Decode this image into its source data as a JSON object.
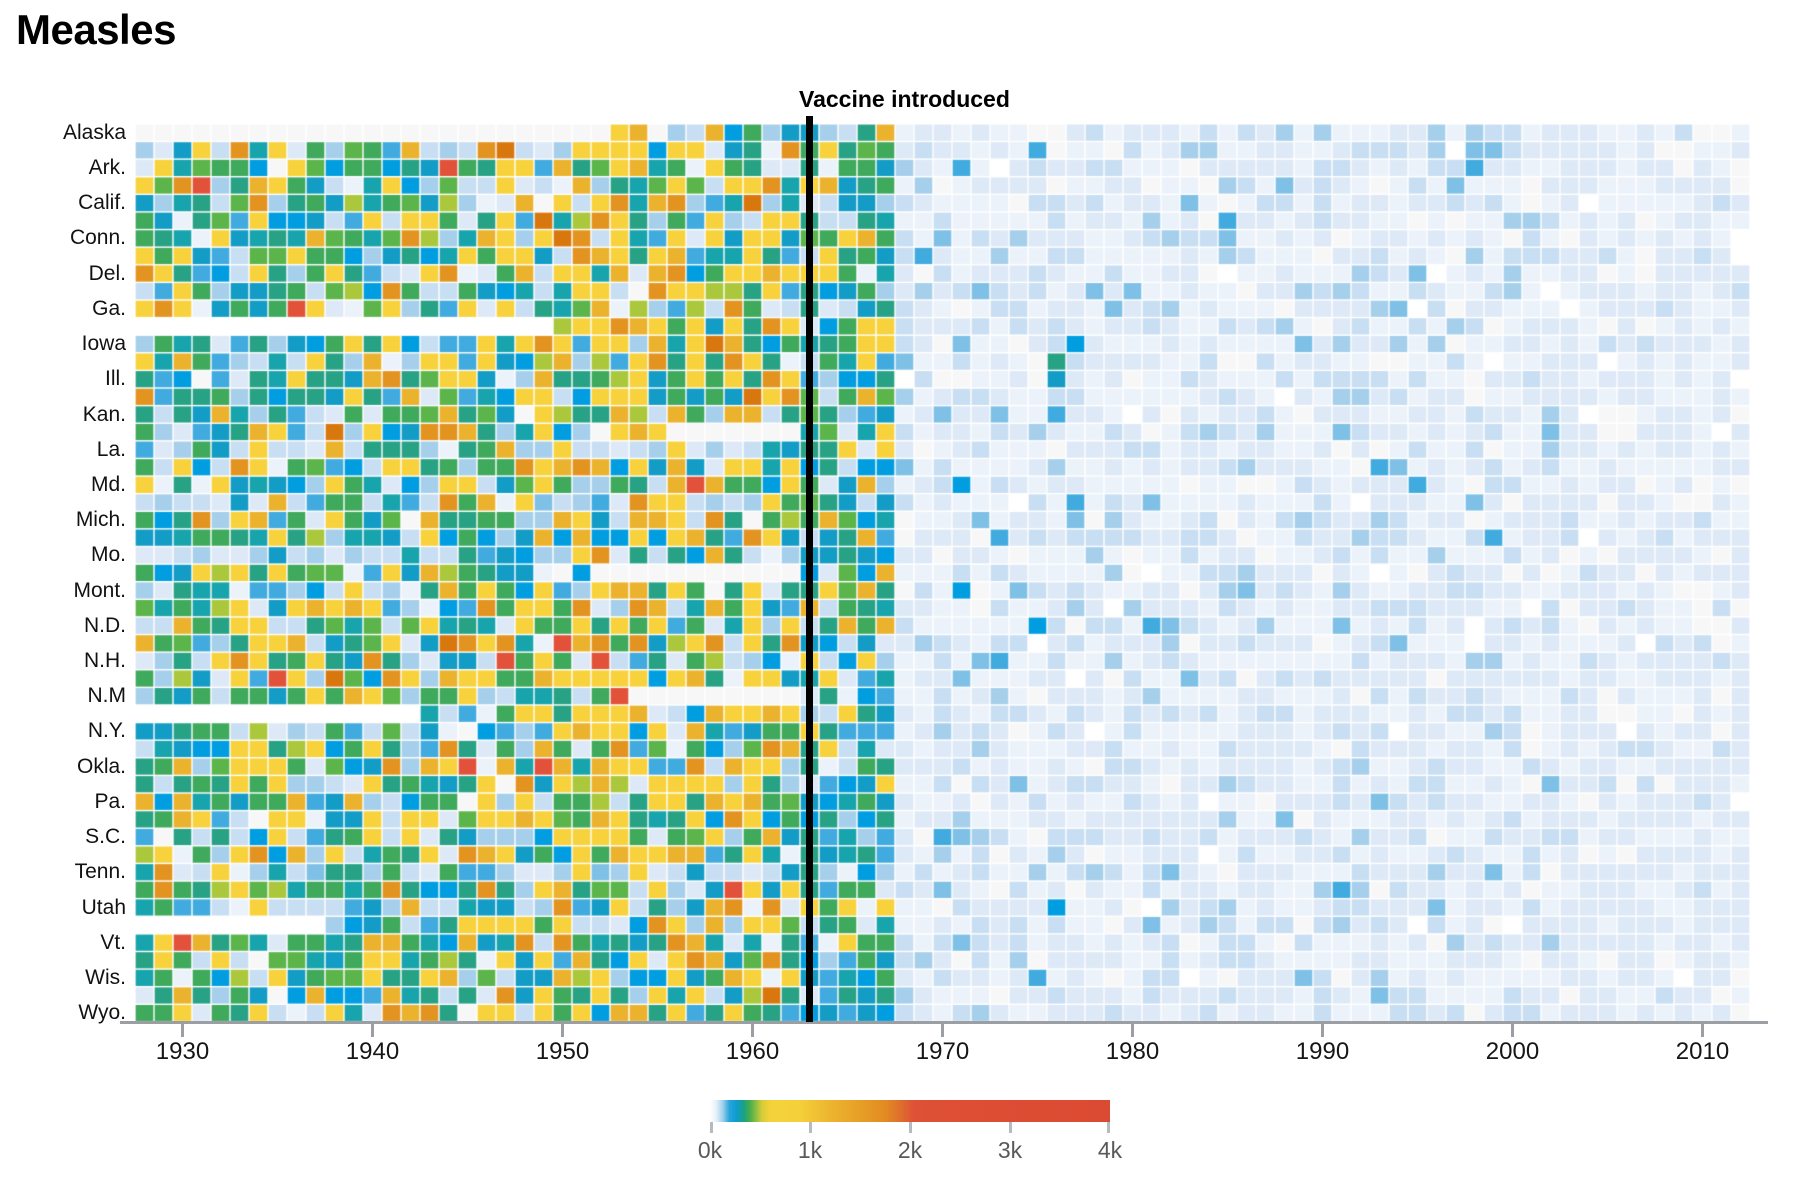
{
  "title": "Measles",
  "annotation": {
    "label": "Vaccine introduced"
  },
  "x_axis": {
    "tick_labels": [
      "1930",
      "1940",
      "1950",
      "1960",
      "1970",
      "1980",
      "1990",
      "2000",
      "2010"
    ]
  },
  "y_axis": {
    "labels": [
      "Alaska",
      "Ark.",
      "Calif.",
      "Conn.",
      "Del.",
      "Ga.",
      "Iowa",
      "Ill.",
      "Kan.",
      "La.",
      "Md.",
      "Mich.",
      "Mo.",
      "Mont.",
      "N.D.",
      "N.H.",
      "N.M",
      "N.Y.",
      "Okla.",
      "Pa.",
      "S.C.",
      "Tenn.",
      "Utah",
      "Vt.",
      "Wis.",
      "Wyo."
    ]
  },
  "legend": {
    "tick_labels": [
      "0k",
      "1k",
      "2k",
      "3k",
      "4k"
    ],
    "gradient_stops": [
      [
        0,
        "#ffffff"
      ],
      [
        1.5,
        "#e8f1f8"
      ],
      [
        3.2,
        "#9fd0ea"
      ],
      [
        4.8,
        "#2aa5dc"
      ],
      [
        6.5,
        "#0f9bd2"
      ],
      [
        8.5,
        "#1aa283"
      ],
      [
        10,
        "#4bad4c"
      ],
      [
        11.5,
        "#8abf42"
      ],
      [
        13,
        "#d8cb3a"
      ],
      [
        15,
        "#f3d23b"
      ],
      [
        22,
        "#f4d13a"
      ],
      [
        30,
        "#edb52f"
      ],
      [
        38,
        "#e79d26"
      ],
      [
        44,
        "#e28a21"
      ],
      [
        48,
        "#dd6b2e"
      ],
      [
        51,
        "#de5137"
      ],
      [
        70,
        "#dd4d34"
      ],
      [
        100,
        "#db4a32"
      ]
    ]
  },
  "chart_data": {
    "type": "heatmap",
    "title": "Measles",
    "x": {
      "start_year": 1928,
      "end_year": 2012,
      "tick_years": [
        1930,
        1940,
        1950,
        1960,
        1970,
        1980,
        1990,
        2000,
        2010
      ]
    },
    "y": {
      "row_count": 51,
      "label_every_other_row": true,
      "visible_labels": [
        "Alaska",
        "Ark.",
        "Calif.",
        "Conn.",
        "Del.",
        "Ga.",
        "Iowa",
        "Ill.",
        "Kan.",
        "La.",
        "Md.",
        "Mich.",
        "Mo.",
        "Mont.",
        "N.D.",
        "N.H.",
        "N.M",
        "N.Y.",
        "Okla.",
        "Pa.",
        "S.C.",
        "Tenn.",
        "Utah",
        "Vt.",
        "Wis.",
        "Wyo."
      ]
    },
    "vaccine_year": 1963,
    "legend_scale": {
      "tick_values": [
        0,
        1000,
        2000,
        3000,
        4000
      ],
      "tick_labels": [
        "0k",
        "1k",
        "2k",
        "3k",
        "4k"
      ]
    },
    "palette": {
      "g": "#f7f7f7",
      "w": "#ffffff",
      "b0": "#ebf2fa",
      "b1": "#dde9f6",
      "b2": "#c8def2",
      "b3": "#a6cfeb",
      "b4": "#7fc0e6",
      "b5": "#41abdf",
      "b6": "#009ee0",
      "cy": "#129cc6",
      "tl": "#17a4ad",
      "tg": "#28a285",
      "gr": "#3fa95c",
      "g2": "#5cb54a",
      "yg": "#abc83d",
      "ye": "#f8d23c",
      "am": "#ebb22e",
      "or": "#e39420",
      "o2": "#d9770f",
      "rd": "#e2523a"
    },
    "eras": [
      {
        "name": "pre_early",
        "from": 1928,
        "to": 1945,
        "weights": [
          [
            "ye",
            15
          ],
          [
            "am",
            5
          ],
          [
            "or",
            3
          ],
          [
            "gr",
            13
          ],
          [
            "g2",
            4
          ],
          [
            "tg",
            11
          ],
          [
            "tl",
            6
          ],
          [
            "cy",
            8
          ],
          [
            "b6",
            5
          ],
          [
            "b5",
            5
          ],
          [
            "b3",
            8
          ],
          [
            "b2",
            7
          ],
          [
            "b1",
            4
          ],
          [
            "b0",
            2
          ],
          [
            "yg",
            2
          ],
          [
            "o2",
            0.5
          ],
          [
            "rd",
            0.5
          ],
          [
            "g",
            1
          ]
        ]
      },
      {
        "name": "pre_late",
        "from": 1946,
        "to": 1962,
        "weights": [
          [
            "ye",
            22
          ],
          [
            "am",
            11
          ],
          [
            "or",
            7
          ],
          [
            "gr",
            10
          ],
          [
            "g2",
            3
          ],
          [
            "tg",
            7
          ],
          [
            "tl",
            4
          ],
          [
            "cy",
            5
          ],
          [
            "b6",
            4
          ],
          [
            "b5",
            3
          ],
          [
            "b3",
            6
          ],
          [
            "b2",
            6
          ],
          [
            "b1",
            5
          ],
          [
            "b0",
            2
          ],
          [
            "yg",
            2
          ],
          [
            "o2",
            1
          ],
          [
            "rd",
            0.5
          ],
          [
            "g",
            1.5
          ]
        ]
      },
      {
        "name": "transition",
        "from": 1963,
        "to": 1967,
        "weights": [
          [
            "gr",
            13
          ],
          [
            "g2",
            3
          ],
          [
            "tg",
            16
          ],
          [
            "cy",
            11
          ],
          [
            "b6",
            10
          ],
          [
            "tl",
            6
          ],
          [
            "ye",
            8
          ],
          [
            "am",
            3
          ],
          [
            "b5",
            8
          ],
          [
            "b3",
            8
          ],
          [
            "b2",
            7
          ],
          [
            "b1",
            5
          ],
          [
            "b0",
            2
          ]
        ]
      },
      {
        "name": "post",
        "from": 1968,
        "to": 2002,
        "weights": [
          [
            "b0",
            33
          ],
          [
            "b1",
            30
          ],
          [
            "b2",
            17
          ],
          [
            "b3",
            6
          ],
          [
            "b4",
            2
          ],
          [
            "g",
            6
          ],
          [
            "w",
            2
          ],
          [
            "b5",
            0.5
          ]
        ]
      },
      {
        "name": "modern",
        "from": 2003,
        "to": 2012,
        "weights": [
          [
            "b1",
            52
          ],
          [
            "b0",
            32
          ],
          [
            "g",
            9
          ],
          [
            "b2",
            5
          ],
          [
            "w",
            2
          ]
        ]
      }
    ],
    "pale_palette": [
      [
        "b2",
        30
      ],
      [
        "b3",
        28
      ],
      [
        "b1",
        18
      ],
      [
        "b5",
        9
      ],
      [
        "b4",
        6
      ],
      [
        "cy",
        4
      ],
      [
        "b0",
        5
      ]
    ],
    "pale_rows": [
      18,
      21,
      24,
      42,
      44
    ],
    "pale_bias": 0.55,
    "gaps": [
      [
        0,
        1928,
        1952,
        "g"
      ],
      [
        11,
        1928,
        1949,
        "w"
      ],
      [
        17,
        1956,
        1962,
        "g"
      ],
      [
        25,
        1952,
        1962,
        "g"
      ],
      [
        32,
        1954,
        1962,
        "g"
      ],
      [
        33,
        1928,
        1942,
        "w"
      ],
      [
        45,
        1928,
        1937,
        "w"
      ]
    ],
    "hotspots": [
      [
        7,
        1969,
        "b5"
      ],
      [
        2,
        1971,
        "b5"
      ],
      [
        12,
        1971,
        "b4"
      ],
      [
        20,
        1971,
        "b6"
      ],
      [
        26,
        1971,
        "b6"
      ],
      [
        40,
        1971,
        "b4"
      ],
      [
        34,
        1970,
        "b3"
      ],
      [
        43,
        1970,
        "b4"
      ],
      [
        30,
        1972,
        "b4"
      ],
      [
        30,
        1973,
        "b5"
      ],
      [
        16,
        1973,
        "b4"
      ],
      [
        28,
        1975,
        "b6"
      ],
      [
        48,
        1975,
        "b5"
      ],
      [
        13,
        1976,
        "tg"
      ],
      [
        14,
        1976,
        "cy"
      ],
      [
        44,
        1976,
        "b6"
      ],
      [
        16,
        1976,
        "b5"
      ],
      [
        12,
        1977,
        "b6"
      ],
      [
        21,
        1977,
        "b5"
      ],
      [
        22,
        1977,
        "b4"
      ],
      [
        9,
        1978,
        "b4"
      ]
    ],
    "seed": 7
  }
}
